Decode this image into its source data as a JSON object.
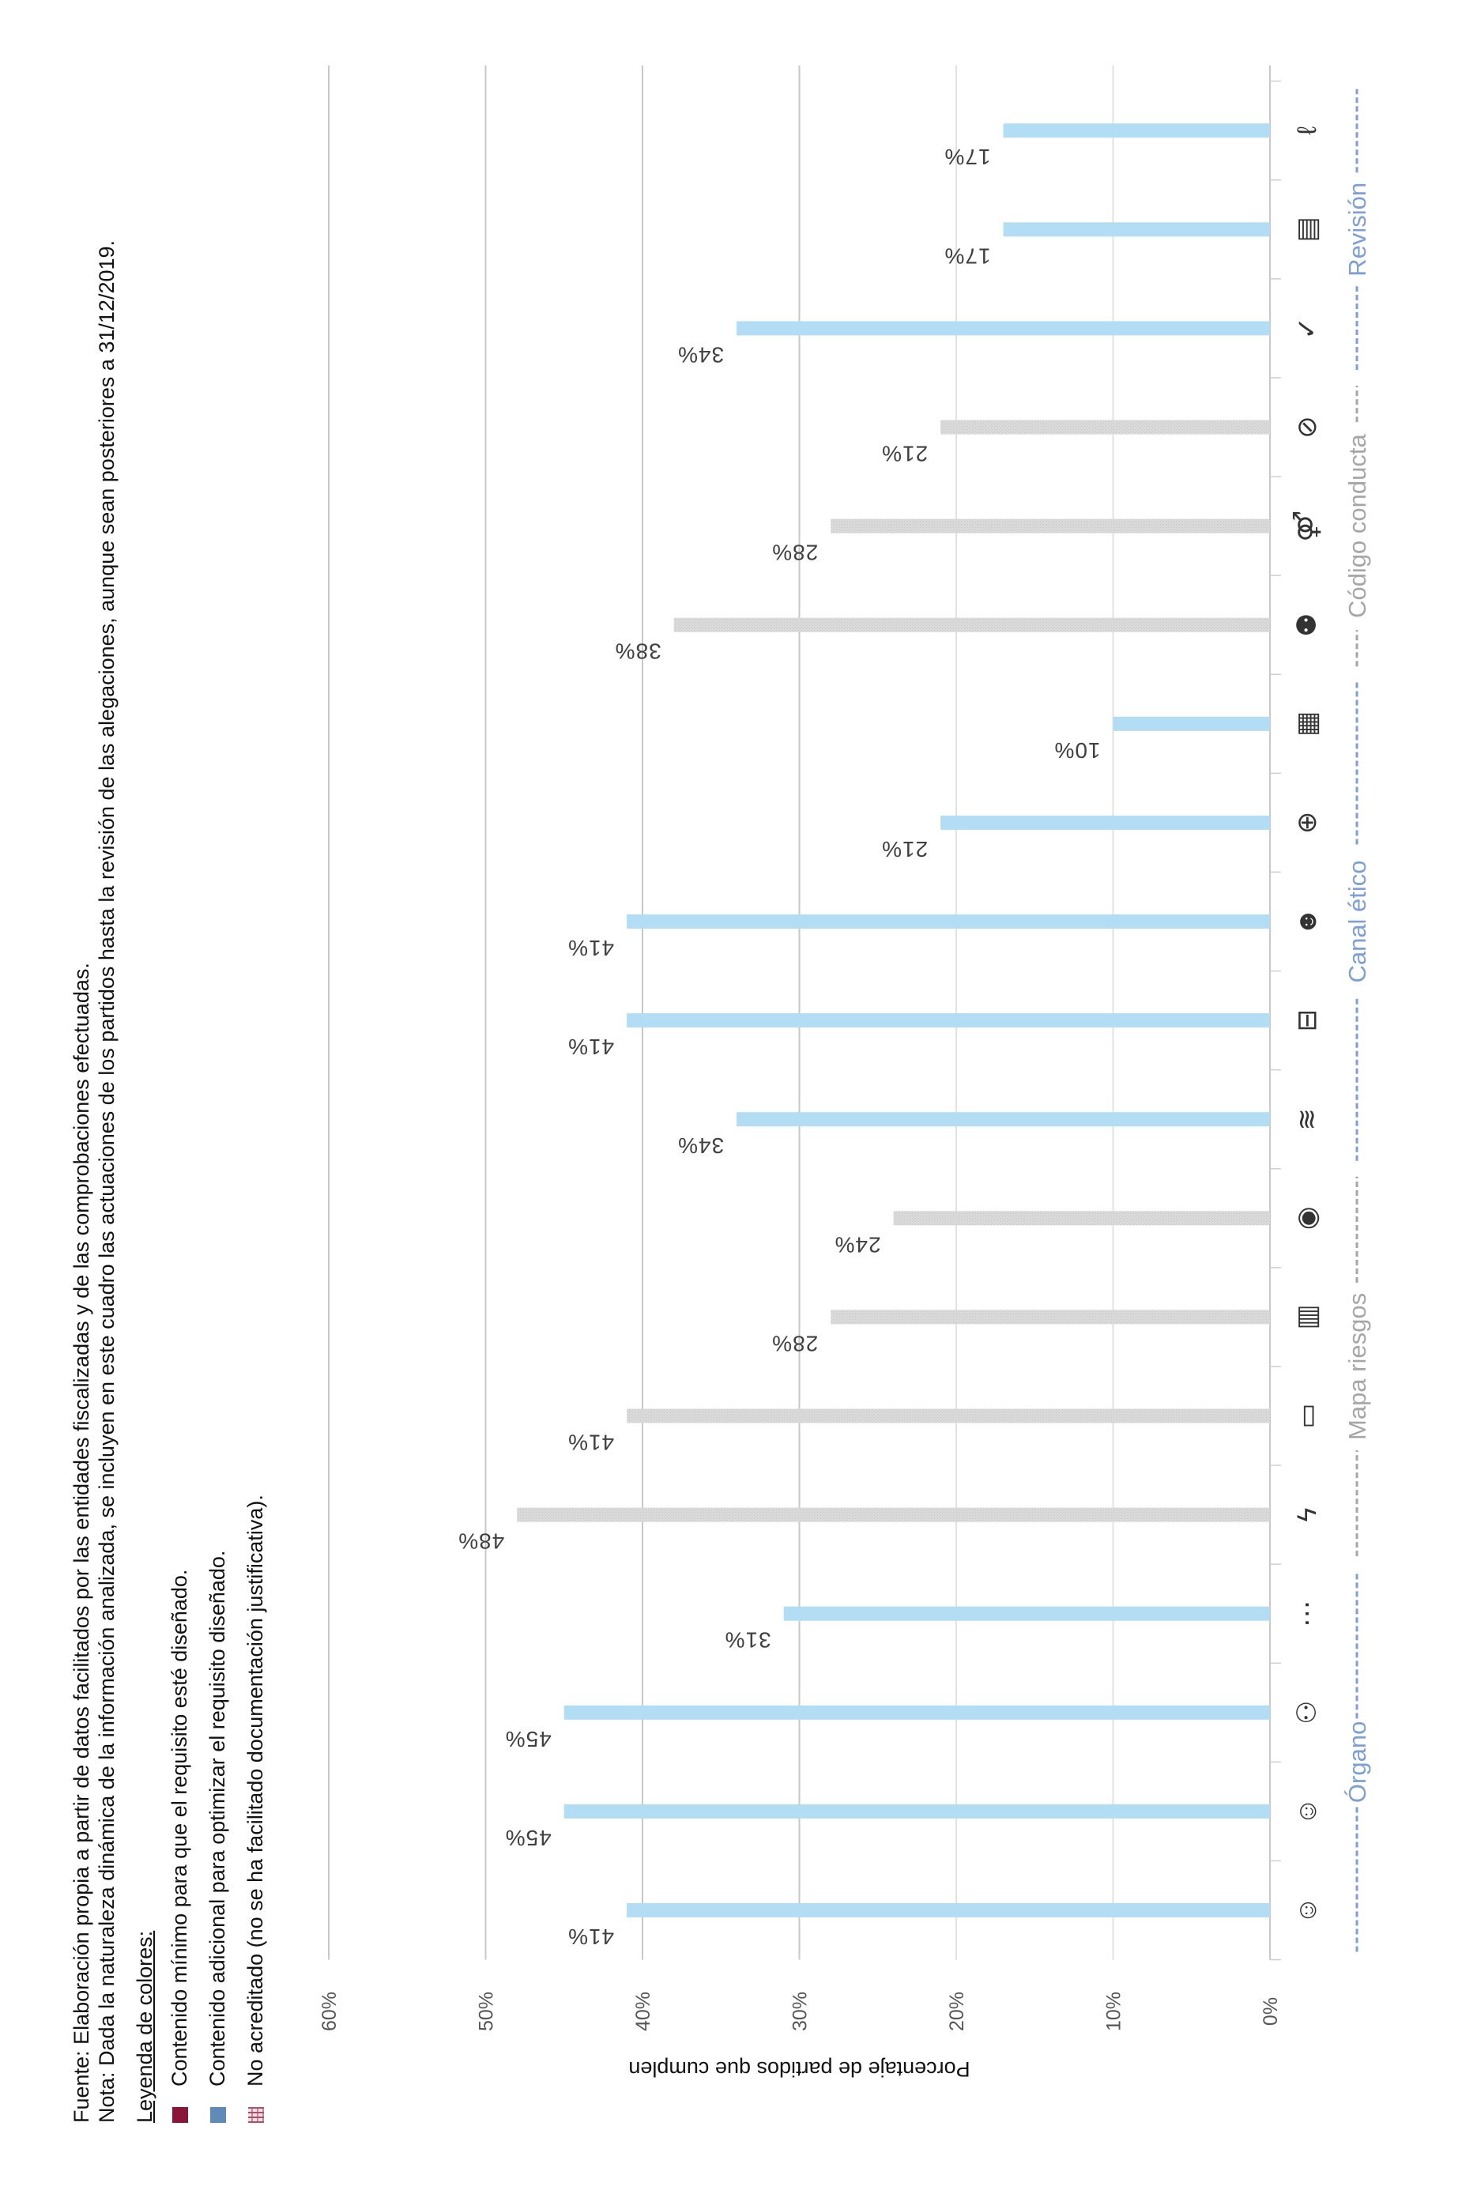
{
  "notes": {
    "fuente": "Fuente: Elaboración propia a partir de datos facilitados por las entidades fiscalizadas y de las comprobaciones efectuadas.",
    "nota": "Nota: Dada la naturaleza dinámica de la información analizada,  se incluyen en este cuadro las actuaciones de los partidos hasta la revisión de las alegaciones, aunque sean posteriores a 31/12/2019."
  },
  "legend": {
    "title": "Leyenda de colores:",
    "items": [
      {
        "label": "Contenido mínimo para que el requisito esté diseñado.",
        "color": "#8b1538",
        "pattern": "solid"
      },
      {
        "label": "Contenido adicional para optimizar el requisito diseñado.",
        "color": "#5f8bb8",
        "pattern": "solid"
      },
      {
        "label": "No acreditado (no se ha facilitado documentación justificativa).",
        "color": "#b9617a",
        "pattern": "hatch"
      }
    ]
  },
  "chart_data": {
    "type": "bar",
    "orientation": "vertical (page rotated 90°)",
    "ylabel": "Porcentaje de partidos que cumplen",
    "xlabel": "",
    "ylim": [
      0,
      60
    ],
    "yticks": [
      "0%",
      "10%",
      "20%",
      "30%",
      "40%",
      "50%",
      "60%"
    ],
    "grid": true,
    "colors": {
      "blue": "#b3dcf5",
      "gray": "#d6d6d6",
      "group_blue": "#7b9fd6",
      "group_gray": "#a6a6a6",
      "grid": "#d9d9d9",
      "label": "#404040"
    },
    "categories": [
      {
        "icon": "person-flag-icon",
        "value": 41,
        "color": "blue"
      },
      {
        "icon": "face-circle-icon",
        "value": 45,
        "color": "blue"
      },
      {
        "icon": "two-people-icon",
        "value": 45,
        "color": "blue"
      },
      {
        "icon": "chat-bubble-icon",
        "value": 31,
        "color": "blue"
      },
      {
        "icon": "lightning-icon",
        "value": 48,
        "color": "gray"
      },
      {
        "icon": "bar-icon",
        "value": 41,
        "color": "gray"
      },
      {
        "icon": "chart-decline-icon",
        "value": 28,
        "color": "gray"
      },
      {
        "icon": "target-icon",
        "value": 24,
        "color": "gray"
      },
      {
        "icon": "wifi-speaker-icon",
        "value": 34,
        "color": "blue"
      },
      {
        "icon": "briefcase-icon",
        "value": 41,
        "color": "blue"
      },
      {
        "icon": "person-speaking-icon",
        "value": 41,
        "color": "blue"
      },
      {
        "icon": "globe-icon",
        "value": 21,
        "color": "blue"
      },
      {
        "icon": "calendar-icon",
        "value": 10,
        "color": "blue"
      },
      {
        "icon": "group-people-icon",
        "value": 38,
        "color": "gray"
      },
      {
        "icon": "restroom-icon",
        "value": 28,
        "color": "gray"
      },
      {
        "icon": "no-sign-icon",
        "value": 21,
        "color": "gray"
      },
      {
        "icon": "check-mark-icon",
        "value": 34,
        "color": "blue"
      },
      {
        "icon": "document-icon",
        "value": 17,
        "color": "blue"
      },
      {
        "icon": "signature-icon",
        "value": 17,
        "color": "blue"
      }
    ],
    "data_labels": [
      "41%",
      "45%",
      "45%",
      "31%",
      "48%",
      "41%",
      "28%",
      "24%",
      "34%",
      "41%",
      "41%",
      "21%",
      "10%",
      "38%",
      "28%",
      "21%",
      "34%",
      "17%",
      "17%"
    ],
    "groups": [
      {
        "label": "Órgano",
        "start": 0,
        "end": 3,
        "color": "blue"
      },
      {
        "label": "Mapa riesgos",
        "start": 4,
        "end": 7,
        "color": "gray"
      },
      {
        "label": "Canal ético",
        "start": 8,
        "end": 12,
        "color": "blue"
      },
      {
        "label": "Código conducta",
        "start": 13,
        "end": 15,
        "color": "gray"
      },
      {
        "label": "Revisión",
        "start": 16,
        "end": 18,
        "color": "blue"
      }
    ]
  }
}
